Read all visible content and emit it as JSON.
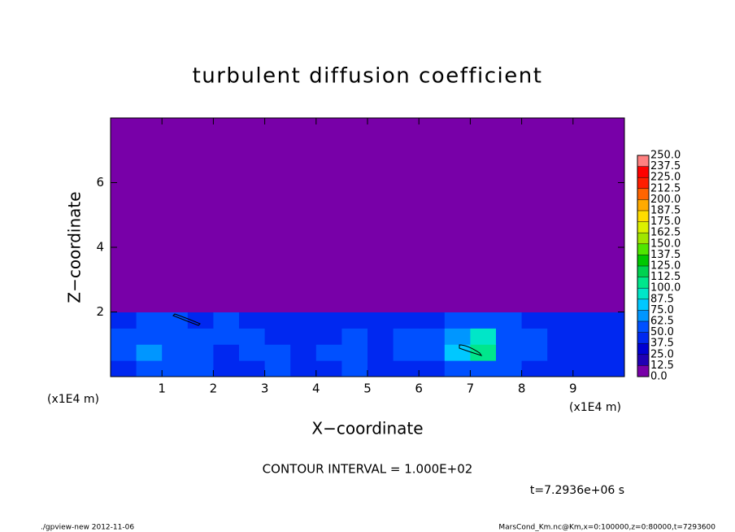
{
  "chart_data": {
    "type": "heatmap",
    "title": "turbulent diffusion coefficient",
    "xlabel": "X−coordinate",
    "ylabel": "Z−coordinate",
    "x_unit": "(x1E4 m)",
    "y_unit": "(x1E4 m)",
    "xlim": [
      0,
      10
    ],
    "ylim": [
      0,
      8
    ],
    "xticks": [
      1,
      2,
      3,
      4,
      5,
      6,
      7,
      8,
      9
    ],
    "yticks": [
      2,
      4,
      6
    ],
    "x_edges": [
      0,
      0.5,
      1,
      1.5,
      2,
      2.5,
      3,
      3.5,
      4,
      4.5,
      5,
      5.5,
      6,
      6.5,
      7,
      7.5,
      8,
      8.5,
      9,
      9.5,
      10
    ],
    "z_edges": [
      0,
      0.5,
      1,
      1.5,
      2,
      8
    ],
    "values": [
      [
        45,
        60,
        50,
        55,
        40,
        45,
        50,
        40,
        45,
        50,
        40,
        45,
        40,
        50,
        60,
        50,
        45,
        40,
        45,
        40
      ],
      [
        55,
        70,
        55,
        60,
        45,
        50,
        55,
        45,
        50,
        55,
        45,
        50,
        55,
        80,
        100,
        60,
        50,
        45,
        45,
        40
      ],
      [
        50,
        55,
        60,
        50,
        60,
        50,
        45,
        40,
        45,
        50,
        45,
        50,
        55,
        70,
        90,
        55,
        50,
        45,
        40,
        40
      ],
      [
        45,
        50,
        55,
        45,
        50,
        45,
        40,
        40,
        45,
        45,
        40,
        40,
        45,
        55,
        60,
        50,
        45,
        40,
        40,
        40
      ],
      [
        0,
        0,
        0,
        0,
        0,
        0,
        0,
        0,
        0,
        0,
        0,
        0,
        0,
        0,
        0,
        0,
        0,
        0,
        0,
        0
      ]
    ],
    "colorbar": {
      "levels": [
        {
          "value": 0,
          "label": "0.0"
        },
        {
          "value": 12.5,
          "label": "12.5"
        },
        {
          "value": 25,
          "label": "25.0"
        },
        {
          "value": 37.5,
          "label": "37.5"
        },
        {
          "value": 50,
          "label": "50.0"
        },
        {
          "value": 62.5,
          "label": "62.5"
        },
        {
          "value": 75,
          "label": "75.0"
        },
        {
          "value": 87.5,
          "label": "87.5"
        },
        {
          "value": 100,
          "label": "100.0"
        },
        {
          "value": 112.5,
          "label": "112.5"
        },
        {
          "value": 125,
          "label": "125.0"
        },
        {
          "value": 137.5,
          "label": "137.5"
        },
        {
          "value": 150,
          "label": "150.0"
        },
        {
          "value": 162.5,
          "label": "162.5"
        },
        {
          "value": 175,
          "label": "175.0"
        },
        {
          "value": 187.5,
          "label": "187.5"
        },
        {
          "value": 200,
          "label": "200.0"
        },
        {
          "value": 212.5,
          "label": "212.5"
        },
        {
          "value": 225,
          "label": "225.0"
        },
        {
          "value": 237.5,
          "label": "237.5"
        },
        {
          "value": 250,
          "label": "250.0"
        }
      ],
      "colors": [
        "#7800a8",
        "#2000b4",
        "#0000d2",
        "#0028f0",
        "#0050ff",
        "#0096ff",
        "#00c8ff",
        "#00e6c8",
        "#00e68c",
        "#00d250",
        "#00c800",
        "#50e600",
        "#a0e600",
        "#dcf000",
        "#ffdc00",
        "#ffaa00",
        "#ff6400",
        "#ff1e00",
        "#ff0000",
        "#ff8080"
      ]
    },
    "contour_note": "CONTOUR INTERVAL = 1.000E+02",
    "time_note": "t=7.2936e+06 s",
    "footer_left": "./gpview-new  2012-11-06",
    "footer_right": "MarsCond_Km.nc@Km,x=0:100000,z=0:80000,t=7293600"
  }
}
